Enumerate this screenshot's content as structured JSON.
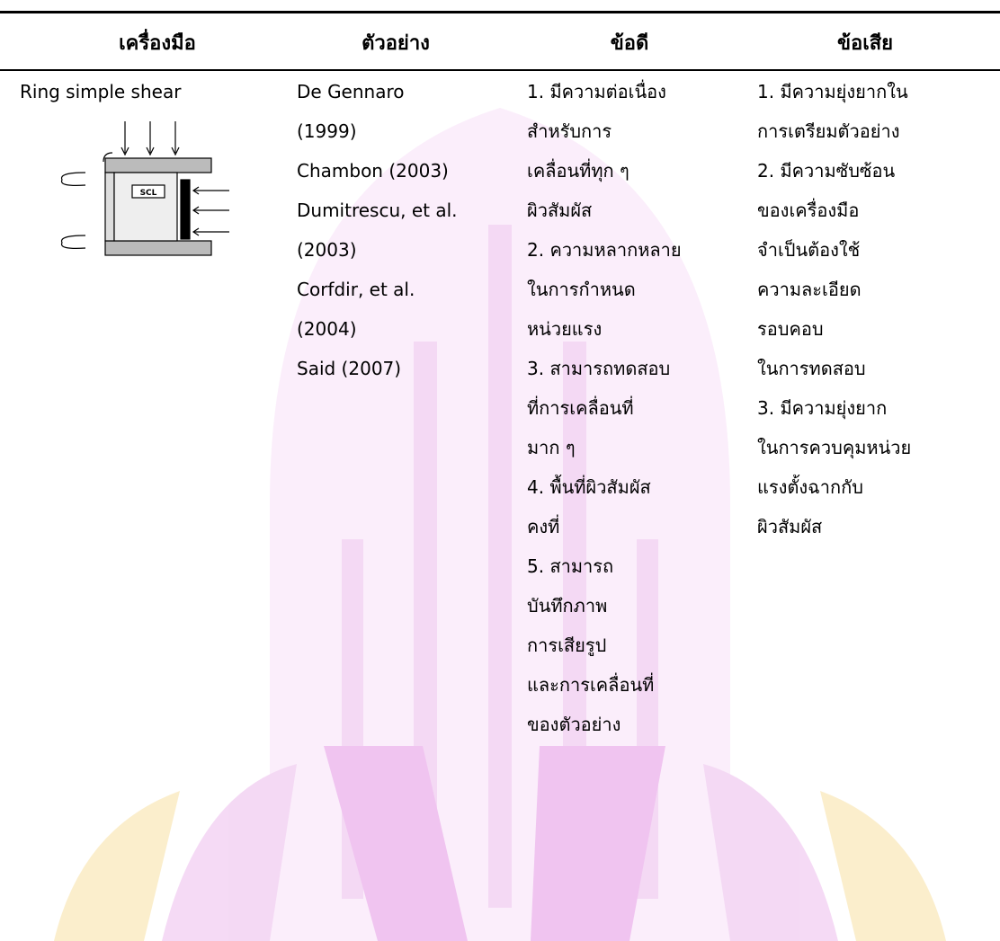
{
  "table": {
    "headers": [
      "เครื่องมือ",
      "ตัวอย่าง",
      "ข้อดี",
      "ข้อเสีย"
    ],
    "rows": [
      [
        [
          "Ring simple shear"
        ],
        [
          "De Gennaro",
          "(1999)",
          "Chambon (2003)",
          "Dumitrescu, et al.",
          "(2003)",
          "Corfdir, et al.",
          "(2004)",
          "Said (2007)"
        ],
        [
          "1. มีความต่อเนื่อง",
          "สำหรับการ",
          "เคลื่อนที่ทุก ๆ",
          "ผิวสัมผัส",
          "2. ความหลากหลาย",
          "ในการกำหนด",
          "หน่วยแรง",
          "3. สามารถทดสอบ",
          "ที่การเคลื่อนที่",
          "มาก ๆ",
          "4. พื้นที่ผิวสัมผัส",
          "คงที่",
          "5. สามารถ",
          "บันทึกภาพ",
          "การเสียรูป",
          "และการเคลื่อนที่",
          "ของตัวอย่าง"
        ],
        [
          "1. มีความยุ่งยากใน",
          "การเตรียมตัวอย่าง",
          "2. มีความซับซ้อน",
          "ของเครื่องมือ",
          "จำเป็นต้องใช้",
          "ความละเอียด",
          "รอบคอบ",
          "ในการทดสอบ",
          "3. มีความยุ่งยาก",
          "ในการควบคุมหน่วย",
          "แรงตั้งฉากกับ",
          "ผิวสัมผัส"
        ]
      ]
    ]
  },
  "figure": {
    "label": "SCL"
  }
}
